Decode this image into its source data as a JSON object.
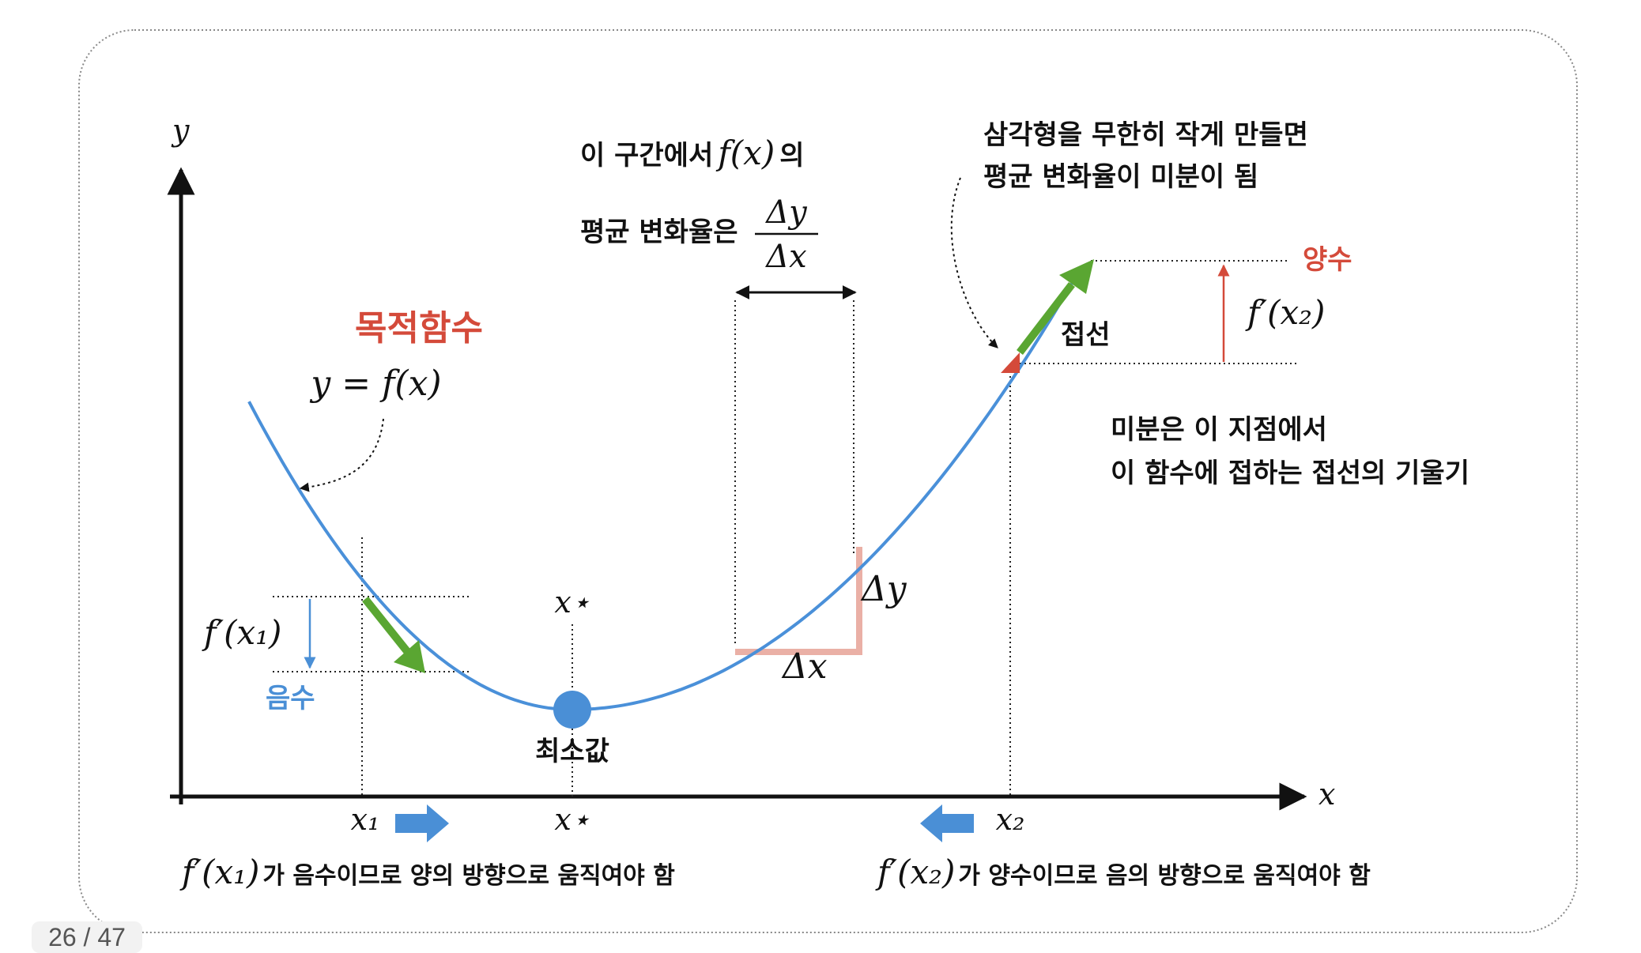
{
  "labels": {
    "y_axis": "y",
    "x_axis": "x",
    "objective_title": "목적함수",
    "objective_eq": "y = f(x)",
    "interval_line1_pre": "이 구간에서",
    "interval_line1_fx": "f(x)",
    "interval_line1_post": "의",
    "interval_line2": "평균 변화율은",
    "dy": "Δy",
    "dx": "Δx",
    "triangle_note_line1": "삼각형을 무한히 작게 만들면",
    "triangle_note_line2": "평균 변화율이 미분이 됨",
    "positive": "양수",
    "negative": "음수",
    "fprime_x2": "f′(x₂)",
    "fprime_x1": "f′(x₁)",
    "tangent": "접선",
    "derivative_note_line1": "미분은 이 지점에서",
    "derivative_note_line2": "이 함수에 접하는 접선의 기울기",
    "x_star": "x⋆",
    "x_star_top": "x⋆",
    "minimum": "최소값",
    "x1": "x₁",
    "x2": "x₂",
    "bottom_left_math": "f′(x₁)",
    "bottom_left_text": "가 음수이므로 양의 방향으로 움직여야 함",
    "bottom_right_math": "f′(x₂)",
    "bottom_right_text": "가 양수이므로 음의 방향으로 움직여야 함"
  },
  "page_counter": "26 / 47",
  "colors": {
    "curve": "#4a90d9",
    "axis": "#111111",
    "accent_red": "#d44a3a",
    "arrow_green": "#5aa632",
    "arrow_blue": "#4a8fd6",
    "triangle_pink": "#eab0a6",
    "min_dot": "#4a8fd6"
  },
  "icons": {
    "green_arrow_left": "arrow-down-right-icon",
    "green_arrow_right": "arrow-up-right-icon",
    "blue_arrow_right": "arrow-right-icon",
    "blue_arrow_left": "arrow-left-icon"
  }
}
